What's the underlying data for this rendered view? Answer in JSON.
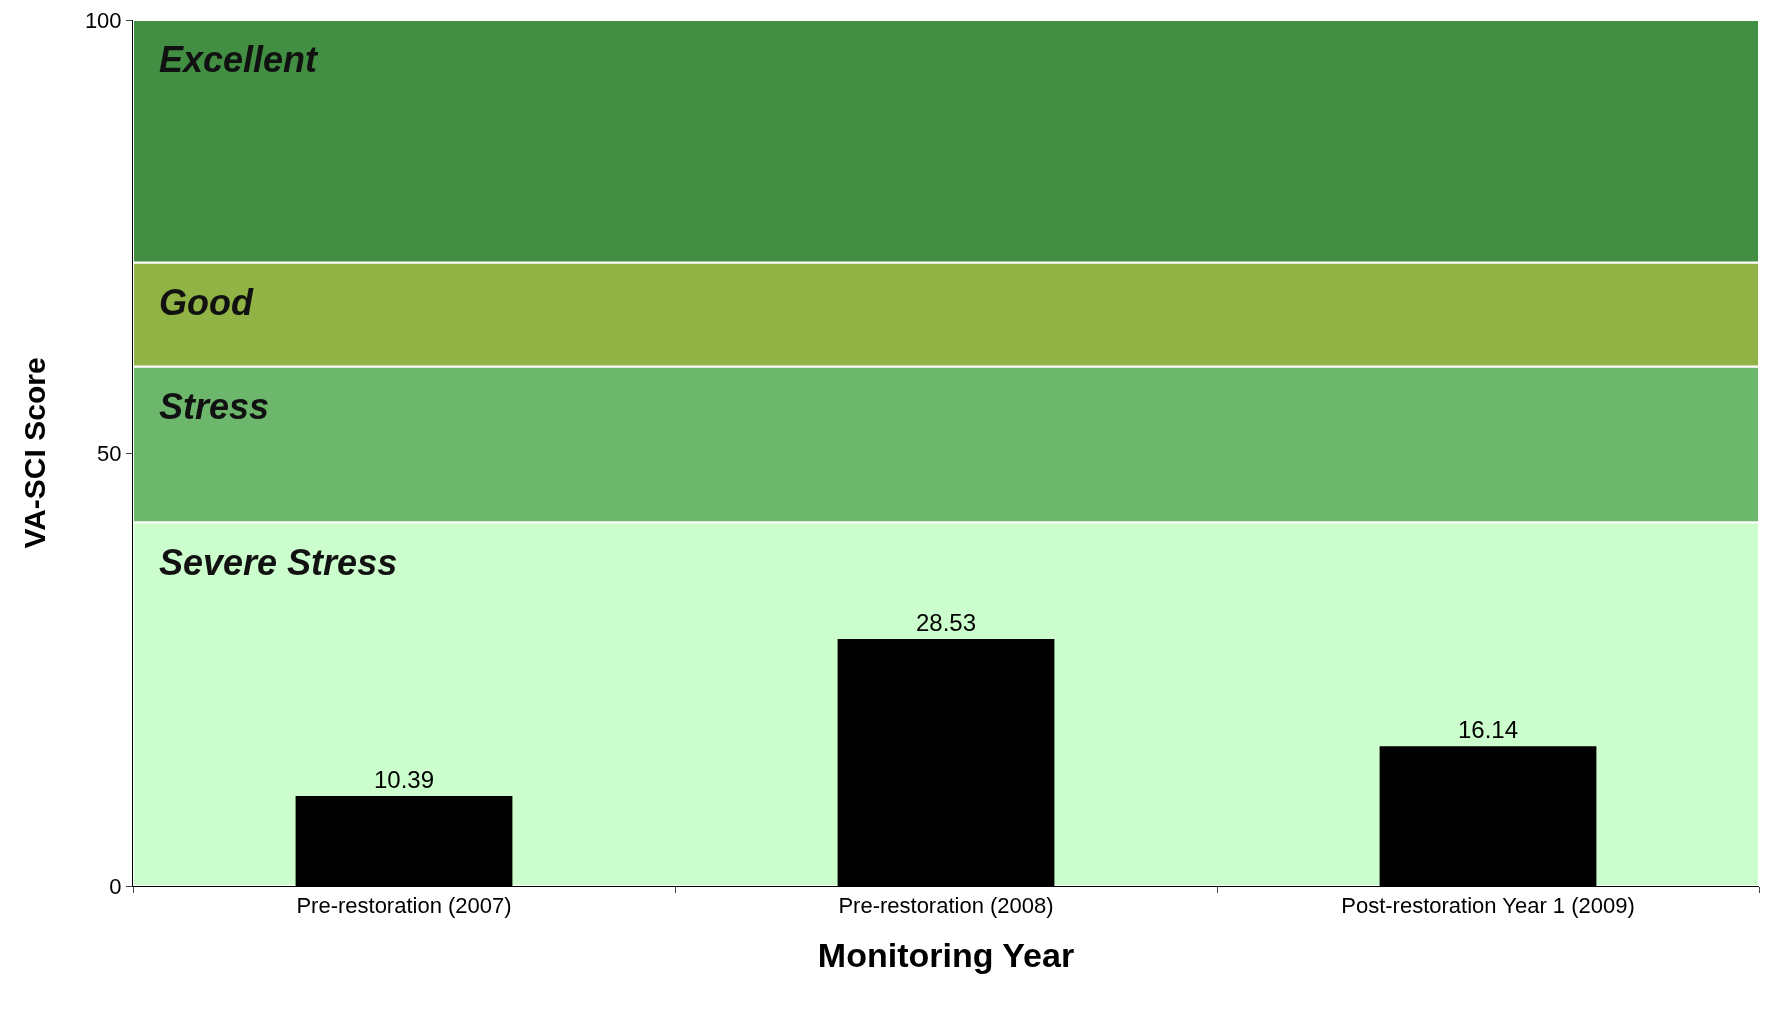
{
  "chart_data": {
    "type": "bar",
    "xlabel": "Monitoring Year",
    "ylabel": "VA-SCI Score",
    "categories": [
      "Pre-restoration (2007)",
      "Pre-restoration (2008)",
      "Post-restoration Year 1 (2009)"
    ],
    "values": [
      10.39,
      28.53,
      16.14
    ],
    "color": "#000000",
    "data_labels": true,
    "ylim": [
      0,
      100
    ],
    "yticks": [
      0,
      50,
      100
    ],
    "grid": false,
    "bands": [
      {
        "axis": "y",
        "from": 0,
        "to": 42,
        "label": "Severe Stress",
        "color": "#ccfdcc"
      },
      {
        "axis": "y",
        "from": 42,
        "to": 60,
        "label": "Stress",
        "color": "#6db76d"
      },
      {
        "axis": "y",
        "from": 60,
        "to": 72,
        "label": "Good",
        "color": "#91b245"
      },
      {
        "axis": "y",
        "from": 72,
        "to": 100,
        "label": "Excellent",
        "color": "#428e42"
      }
    ]
  }
}
